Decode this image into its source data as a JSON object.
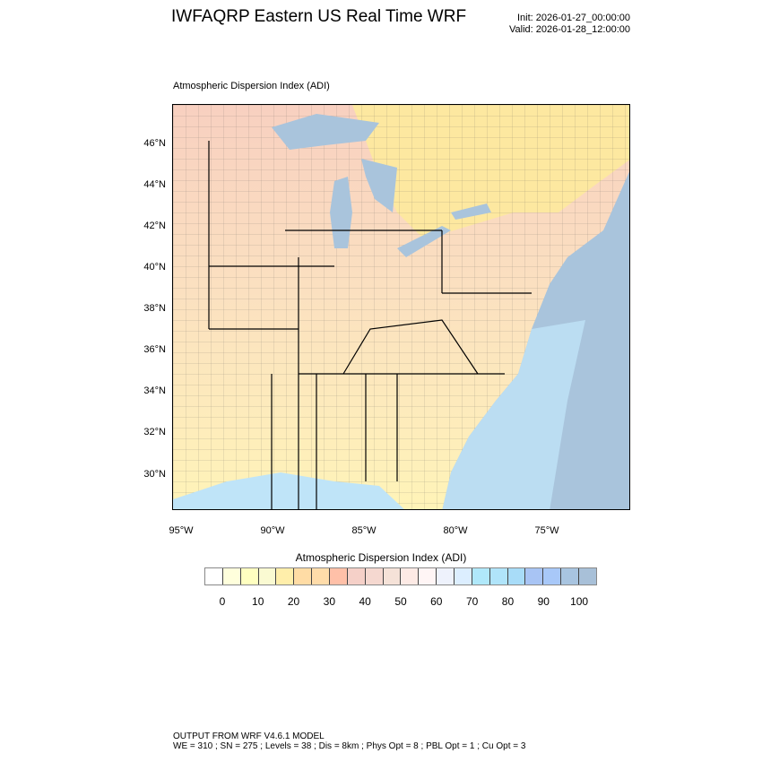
{
  "header": {
    "title": "IWFAQRP Eastern US Real Time WRF",
    "init": "Init: 2026-01-27_00:00:00",
    "valid": "Valid: 2026-01-28_12:00:00"
  },
  "plot": {
    "subtitle": "Atmospheric Dispersion Index   (ADI)",
    "lat_labels": [
      "46°N",
      "44°N",
      "42°N",
      "40°N",
      "38°N",
      "36°N",
      "34°N",
      "32°N",
      "30°N"
    ],
    "lon_labels": [
      "95°W",
      "90°W",
      "85°W",
      "80°W",
      "75°W"
    ],
    "colors": {
      "land_low": "#fff4b8",
      "land_mid": "#f8d0b8",
      "ocean": "#a9c4dc",
      "lake": "#a9c4dc",
      "canada": "#fde8a0"
    }
  },
  "colorbar": {
    "title": "Atmospheric Dispersion Index  (ADI)",
    "labels": [
      "0",
      "10",
      "20",
      "30",
      "40",
      "50",
      "60",
      "70",
      "80",
      "90",
      "100"
    ],
    "colors": [
      "#ffffff",
      "#ffffdc",
      "#ffffc0",
      "#fafad2",
      "#ffeeaa",
      "#ffdca5",
      "#ffdcaa",
      "#ffc0a8",
      "#f5d0c8",
      "#f5d8d0",
      "#f5e2d8",
      "#fdeae5",
      "#fff5f5",
      "#eef2fc",
      "#dceeff",
      "#b0e8fa",
      "#b0e4fa",
      "#a8dcf8",
      "#a8c4f4",
      "#a8c8f8",
      "#a8c4e0",
      "#a8c0d8"
    ]
  },
  "footer": {
    "line1": "OUTPUT FROM WRF V4.6.1 MODEL",
    "line2": "WE = 310 ; SN = 275 ; Levels = 38 ; Dis = 8km ; Phys Opt = 8 ; PBL Opt = 1 ; Cu Opt = 3"
  }
}
